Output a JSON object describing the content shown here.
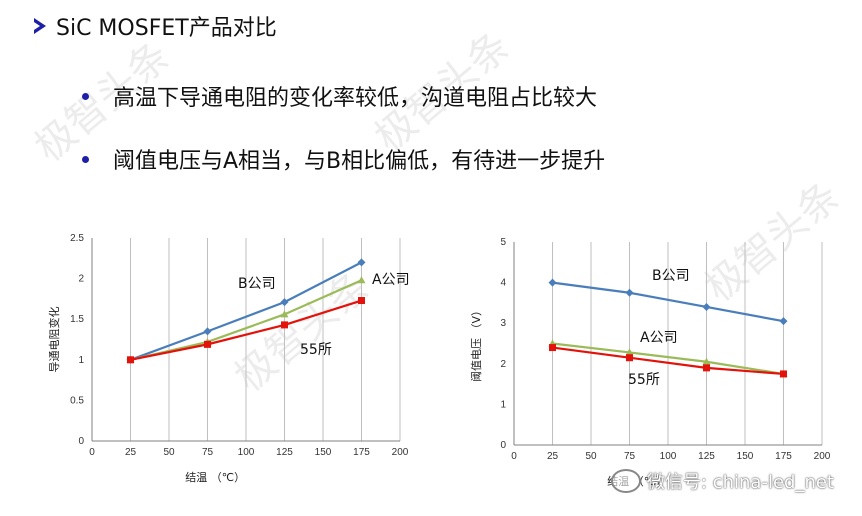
{
  "heading": "SiC MOSFET产品对比",
  "bullets": [
    "高温下导通电阻的变化率较低，沟道电阻占比较大",
    "阈值电压与A相当，与B相比偏低，有待进一步提升"
  ],
  "watermark_text": "微信号: china-led_net",
  "background_watermark": [
    "极智头条",
    "极智头条",
    "极智头条",
    "极智头条"
  ],
  "colors": {
    "blue": "#4a7ebb",
    "green": "#9bbb59",
    "red": "#e3120b",
    "accent": "#1d1fa8"
  },
  "chart_data": [
    {
      "type": "line",
      "xlabel": "结温 （℃）",
      "ylabel": "导通电阻变化",
      "xlim": [
        0,
        200
      ],
      "ylim": [
        0,
        2.5
      ],
      "xticks": [
        "0",
        "25",
        "50",
        "75",
        "100",
        "125",
        "150",
        "175",
        "200"
      ],
      "yticks": [
        "0",
        "0.5",
        "1",
        "1.5",
        "2",
        "2.5"
      ],
      "grid": true,
      "series": [
        {
          "name": "B公司",
          "color": "#4a7ebb",
          "marker": "diamond",
          "x": [
            25,
            75,
            125,
            175
          ],
          "values": [
            1.0,
            1.35,
            1.71,
            2.2
          ]
        },
        {
          "name": "A公司",
          "color": "#9bbb59",
          "marker": "triangle",
          "x": [
            25,
            75,
            125,
            175
          ],
          "values": [
            1.0,
            1.22,
            1.56,
            1.98
          ]
        },
        {
          "name": "55所",
          "color": "#e3120b",
          "marker": "square",
          "x": [
            25,
            75,
            125,
            175
          ],
          "values": [
            1.0,
            1.19,
            1.43,
            1.73
          ]
        }
      ]
    },
    {
      "type": "line",
      "xlabel": "结温 （℃）",
      "ylabel": "阈值电压 （V）",
      "xlim": [
        0,
        200
      ],
      "ylim": [
        0,
        5
      ],
      "xticks": [
        "0",
        "25",
        "50",
        "75",
        "100",
        "125",
        "150",
        "175",
        "200"
      ],
      "yticks": [
        "0",
        "1",
        "2",
        "3",
        "4",
        "5"
      ],
      "grid": true,
      "series": [
        {
          "name": "B公司",
          "color": "#4a7ebb",
          "marker": "diamond",
          "x": [
            25,
            75,
            125,
            175
          ],
          "values": [
            4.0,
            3.75,
            3.4,
            3.05
          ]
        },
        {
          "name": "A公司",
          "color": "#9bbb59",
          "marker": "triangle",
          "x": [
            25,
            75,
            125,
            175
          ],
          "values": [
            2.5,
            2.28,
            2.05,
            1.75
          ]
        },
        {
          "name": "55所",
          "color": "#e3120b",
          "marker": "square",
          "x": [
            25,
            75,
            125,
            175
          ],
          "values": [
            2.4,
            2.15,
            1.9,
            1.75
          ]
        }
      ]
    }
  ]
}
